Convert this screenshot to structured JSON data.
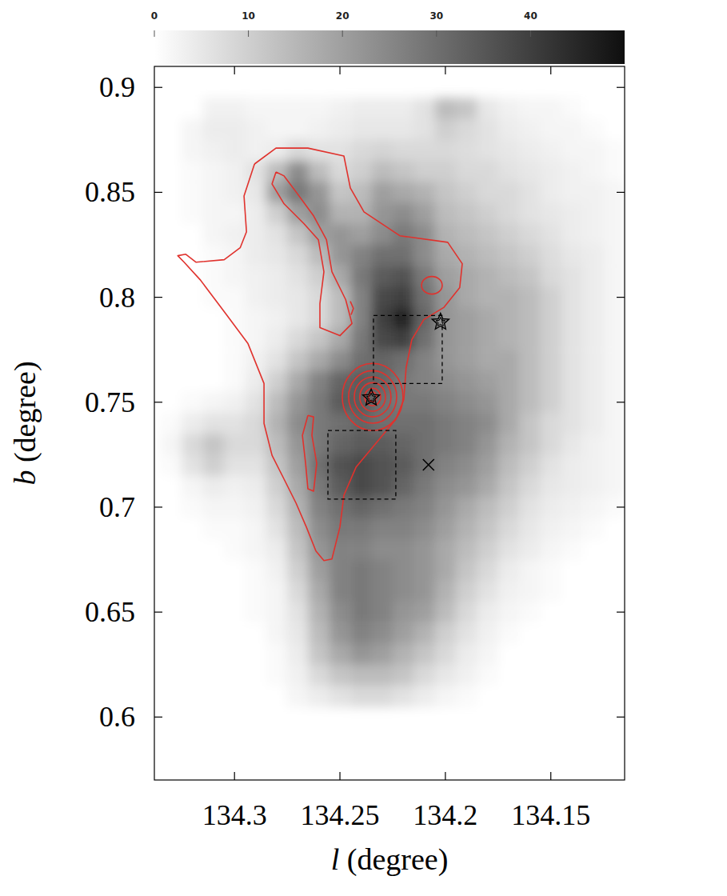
{
  "chart_data": {
    "type": "heatmap",
    "xlabel": "l (degree)",
    "ylabel": "b (degree)",
    "xlim": [
      134.338,
      134.115
    ],
    "ylim": [
      0.57,
      0.91
    ],
    "xticks": [
      134.3,
      134.25,
      134.2,
      134.15
    ],
    "yticks": [
      0.6,
      0.65,
      0.7,
      0.75,
      0.8,
      0.85,
      0.9
    ],
    "x": [
      134.33,
      134.32,
      134.31,
      134.3,
      134.29,
      134.28,
      134.27,
      134.26,
      134.25,
      134.24,
      134.23,
      134.22,
      134.21,
      134.2,
      134.19,
      134.18,
      134.17,
      134.16,
      134.15,
      134.14,
      134.13,
      134.12
    ],
    "y": [
      0.89,
      0.88,
      0.87,
      0.86,
      0.85,
      0.84,
      0.83,
      0.82,
      0.81,
      0.8,
      0.79,
      0.78,
      0.77,
      0.76,
      0.75,
      0.74,
      0.73,
      0.72,
      0.71,
      0.7,
      0.69,
      0.68,
      0.67,
      0.66,
      0.65,
      0.64,
      0.63,
      0.62,
      0.61
    ],
    "cells": [
      [
        0,
        0,
        3,
        3,
        2,
        2,
        2,
        2,
        3,
        4,
        4,
        4,
        6,
        14,
        12,
        5,
        3,
        2,
        2,
        1,
        0,
        0
      ],
      [
        0,
        2,
        4,
        4,
        3,
        2,
        2,
        3,
        4,
        5,
        5,
        5,
        6,
        10,
        8,
        6,
        4,
        3,
        2,
        2,
        1,
        0
      ],
      [
        0,
        2,
        3,
        4,
        3,
        4,
        8,
        6,
        6,
        8,
        9,
        8,
        8,
        8,
        7,
        6,
        5,
        4,
        3,
        2,
        2,
        1
      ],
      [
        0,
        1,
        2,
        3,
        6,
        14,
        24,
        14,
        8,
        10,
        14,
        12,
        10,
        10,
        8,
        8,
        6,
        5,
        4,
        3,
        2,
        1
      ],
      [
        0,
        1,
        2,
        3,
        5,
        20,
        28,
        22,
        12,
        14,
        20,
        18,
        16,
        12,
        10,
        8,
        8,
        6,
        4,
        3,
        3,
        2
      ],
      [
        0,
        1,
        2,
        2,
        4,
        10,
        20,
        24,
        16,
        16,
        22,
        24,
        20,
        14,
        12,
        10,
        8,
        6,
        5,
        4,
        3,
        2
      ],
      [
        0,
        0,
        2,
        3,
        4,
        6,
        12,
        20,
        22,
        20,
        24,
        28,
        24,
        16,
        14,
        12,
        10,
        8,
        6,
        4,
        3,
        2
      ],
      [
        0,
        0,
        1,
        2,
        4,
        5,
        8,
        14,
        22,
        26,
        30,
        30,
        24,
        18,
        16,
        14,
        12,
        10,
        7,
        5,
        4,
        2
      ],
      [
        0,
        0,
        1,
        2,
        3,
        4,
        6,
        10,
        18,
        28,
        34,
        36,
        28,
        20,
        18,
        16,
        14,
        12,
        8,
        6,
        4,
        2
      ],
      [
        0,
        0,
        1,
        1,
        3,
        4,
        5,
        8,
        14,
        26,
        38,
        40,
        30,
        22,
        18,
        16,
        16,
        14,
        10,
        6,
        4,
        2
      ],
      [
        0,
        0,
        0,
        1,
        2,
        3,
        5,
        8,
        14,
        26,
        40,
        46,
        32,
        22,
        20,
        18,
        16,
        14,
        10,
        6,
        4,
        2
      ],
      [
        0,
        0,
        0,
        1,
        2,
        4,
        8,
        12,
        18,
        28,
        38,
        40,
        30,
        22,
        20,
        18,
        16,
        14,
        10,
        6,
        4,
        2
      ],
      [
        0,
        0,
        0,
        1,
        3,
        6,
        12,
        18,
        24,
        30,
        32,
        30,
        26,
        22,
        20,
        18,
        18,
        14,
        10,
        6,
        4,
        2
      ],
      [
        0,
        0,
        0,
        1,
        4,
        10,
        18,
        26,
        32,
        34,
        32,
        28,
        26,
        24,
        22,
        20,
        18,
        14,
        10,
        6,
        4,
        2
      ],
      [
        0,
        1,
        2,
        3,
        6,
        14,
        22,
        28,
        34,
        34,
        30,
        28,
        28,
        26,
        24,
        22,
        18,
        14,
        10,
        6,
        4,
        2
      ],
      [
        1,
        4,
        6,
        6,
        8,
        16,
        24,
        28,
        30,
        32,
        30,
        30,
        30,
        28,
        26,
        24,
        18,
        12,
        8,
        6,
        4,
        2
      ],
      [
        2,
        8,
        12,
        8,
        8,
        14,
        22,
        28,
        32,
        34,
        34,
        32,
        30,
        28,
        26,
        22,
        16,
        12,
        8,
        5,
        3,
        2
      ],
      [
        1,
        6,
        10,
        6,
        6,
        12,
        20,
        30,
        36,
        38,
        36,
        34,
        30,
        26,
        24,
        20,
        14,
        10,
        6,
        4,
        3,
        2
      ],
      [
        0,
        2,
        4,
        3,
        4,
        10,
        18,
        28,
        34,
        38,
        36,
        32,
        28,
        24,
        22,
        18,
        12,
        8,
        5,
        4,
        3,
        2
      ],
      [
        0,
        1,
        2,
        2,
        3,
        8,
        16,
        26,
        30,
        32,
        30,
        28,
        26,
        22,
        18,
        14,
        10,
        6,
        4,
        3,
        2,
        1
      ],
      [
        0,
        0,
        1,
        1,
        2,
        6,
        14,
        24,
        28,
        28,
        26,
        26,
        24,
        20,
        16,
        12,
        8,
        5,
        3,
        2,
        1,
        0
      ],
      [
        0,
        0,
        0,
        1,
        2,
        4,
        12,
        22,
        26,
        26,
        24,
        24,
        22,
        18,
        14,
        10,
        6,
        4,
        2,
        1,
        0,
        0
      ],
      [
        0,
        0,
        0,
        0,
        1,
        3,
        10,
        20,
        26,
        28,
        26,
        24,
        22,
        18,
        12,
        8,
        4,
        2,
        1,
        0,
        0,
        0
      ],
      [
        0,
        0,
        0,
        0,
        1,
        2,
        8,
        18,
        26,
        28,
        26,
        24,
        22,
        16,
        10,
        6,
        3,
        2,
        1,
        0,
        0,
        0
      ],
      [
        0,
        0,
        0,
        0,
        1,
        2,
        6,
        16,
        24,
        28,
        26,
        22,
        20,
        14,
        8,
        4,
        2,
        1,
        0,
        0,
        0,
        0
      ],
      [
        0,
        0,
        0,
        0,
        0,
        2,
        5,
        14,
        22,
        26,
        24,
        20,
        16,
        10,
        6,
        3,
        1,
        0,
        0,
        0,
        0,
        0
      ],
      [
        0,
        0,
        0,
        0,
        0,
        1,
        4,
        12,
        18,
        22,
        20,
        16,
        12,
        8,
        4,
        2,
        0,
        0,
        0,
        0,
        0,
        0
      ],
      [
        0,
        0,
        0,
        0,
        0,
        1,
        3,
        8,
        12,
        14,
        14,
        12,
        8,
        5,
        3,
        1,
        0,
        0,
        0,
        0,
        0,
        0
      ],
      [
        0,
        0,
        0,
        0,
        0,
        0,
        2,
        4,
        6,
        8,
        8,
        6,
        4,
        2,
        1,
        0,
        0,
        0,
        0,
        0,
        0,
        0
      ]
    ],
    "colorbar": {
      "range": [
        0,
        50
      ],
      "ticks": [
        0,
        10,
        20,
        30,
        40
      ]
    },
    "contours": [
      {
        "color": "#e0322d",
        "x": [
          134.2905,
          134.2803,
          134.2652,
          134.2481,
          134.2451,
          134.2386,
          134.2216,
          134.1989,
          134.192,
          134.1932,
          134.2008,
          134.2102,
          134.2159,
          134.2186,
          134.2197,
          134.2235,
          134.233,
          134.2424,
          134.2481,
          134.25,
          134.2538,
          134.2576,
          134.2614,
          134.2659,
          134.2708,
          134.2765,
          134.2822,
          134.286,
          134.286,
          134.2936,
          134.3049,
          134.3163,
          134.3239,
          134.3269,
          134.3231,
          134.3182,
          134.3049,
          134.2973,
          134.2943,
          134.2955,
          134.2905
        ],
        "y": [
          0.8635,
          0.8711,
          0.8711,
          0.8673,
          0.8521,
          0.8407,
          0.8293,
          0.8262,
          0.816,
          0.8046,
          0.7951,
          0.7894,
          0.7798,
          0.7665,
          0.7513,
          0.7418,
          0.7304,
          0.719,
          0.7057,
          0.6905,
          0.6753,
          0.6745,
          0.6791,
          0.6905,
          0.7019,
          0.7133,
          0.7247,
          0.7399,
          0.7589,
          0.7779,
          0.7932,
          0.8084,
          0.8167,
          0.8198,
          0.8205,
          0.8167,
          0.8179,
          0.8236,
          0.8312,
          0.8483,
          0.8635
        ]
      },
      {
        "color": "#e0322d",
        "x": [
          134.2803,
          134.2822,
          134.2765,
          134.267,
          134.2602,
          134.2576,
          134.2595,
          134.2595,
          134.25,
          134.2443,
          134.2473,
          134.2538,
          134.2564,
          134.2625,
          134.2708,
          134.2765,
          134.2803
        ],
        "y": [
          0.8597,
          0.854,
          0.8445,
          0.835,
          0.8274,
          0.8122,
          0.797,
          0.7856,
          0.7817,
          0.7875,
          0.7989,
          0.8122,
          0.8274,
          0.8388,
          0.8502,
          0.8578,
          0.8597
        ]
      },
      {
        "color": "#e0322d",
        "x": [
          134.2451,
          134.2436,
          134.2447
        ],
        "y": [
          0.7981,
          0.7947,
          0.7916
        ]
      },
      {
        "color": "#e0322d",
        "x": [
          134.2652,
          134.2678,
          134.2663,
          134.2652,
          134.2625,
          134.261,
          134.2633,
          134.2625,
          134.2652
        ],
        "y": [
          0.7437,
          0.7342,
          0.7209,
          0.7087,
          0.7076,
          0.7209,
          0.7342,
          0.743,
          0.7437
        ]
      }
    ],
    "ellipses": [
      {
        "color": "#e0322d",
        "x": 134.2345,
        "y": 0.7525,
        "rx": 0.0144,
        "ry": 0.016
      },
      {
        "color": "#e0322d",
        "x": 134.2345,
        "y": 0.7525,
        "rx": 0.0114,
        "ry": 0.0125
      },
      {
        "color": "#e0322d",
        "x": 134.2345,
        "y": 0.7525,
        "rx": 0.0087,
        "ry": 0.0095
      },
      {
        "color": "#e0322d",
        "x": 134.2345,
        "y": 0.7525,
        "rx": 0.0061,
        "ry": 0.0068
      },
      {
        "color": "#e0322d",
        "x": 134.2345,
        "y": 0.7525,
        "rx": 0.0038,
        "ry": 0.0042
      },
      {
        "color": "#e0322d",
        "x": 134.2345,
        "y": 0.7525,
        "rx": 0.0019,
        "ry": 0.0023
      },
      {
        "color": "#e0322d",
        "x": 134.2064,
        "y": 0.8057,
        "rx": 0.0049,
        "ry": 0.0042
      }
    ],
    "series": [
      {
        "marker": "star",
        "color": "#000000",
        "x": [
          134.2352,
          134.2023
        ],
        "y": [
          0.7521,
          0.7882
        ]
      },
      {
        "marker": "cross",
        "color": "#000000",
        "x": [
          134.208
        ],
        "y": [
          0.7202
        ]
      }
    ],
    "boxes": [
      {
        "line_style": "dashed",
        "color": "#000000",
        "x": [
          134.2341,
          134.2015
        ],
        "y": [
          0.7913,
          0.7589
        ]
      },
      {
        "line_style": "dashed",
        "color": "#000000",
        "x": [
          134.2557,
          134.2235
        ],
        "y": [
          0.7365,
          0.7038
        ]
      }
    ]
  }
}
